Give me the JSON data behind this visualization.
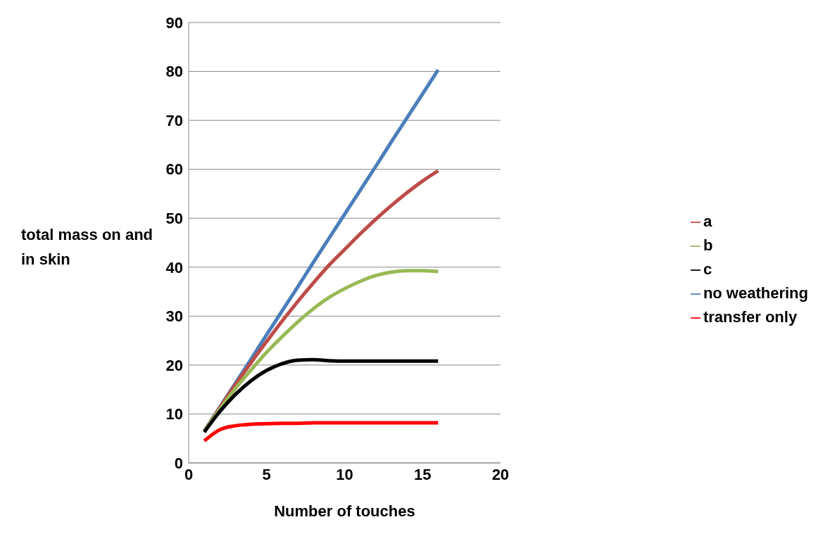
{
  "chart_data": {
    "type": "line",
    "xlabel": "Number of touches",
    "ylabel": "total mass on and in skin",
    "x": [
      1,
      2,
      3,
      4,
      5,
      6,
      7,
      8,
      9,
      10,
      11,
      12,
      13,
      14,
      15,
      16
    ],
    "series": [
      {
        "name": "no weathering",
        "color": "#4a7ebb",
        "values": [
          6.5,
          11.4,
          16.3,
          21.2,
          26.2,
          31.1,
          36.0,
          41.0,
          45.9,
          50.8,
          55.7,
          60.6,
          65.6,
          70.5,
          75.4,
          80.3
        ]
      },
      {
        "name": "a",
        "color": "#be4b48",
        "values": [
          6.5,
          11.3,
          16,
          20.5,
          24.8,
          29,
          33,
          36.8,
          40.4,
          43.6,
          46.8,
          49.8,
          52.6,
          55.2,
          57.6,
          59.7
        ]
      },
      {
        "name": "b",
        "color": "#98b954",
        "values": [
          6.5,
          11,
          15.2,
          19,
          22.6,
          25.8,
          28.8,
          31.5,
          33.8,
          35.6,
          37.1,
          38.3,
          39.0,
          39.3,
          39.3,
          39.1
        ]
      },
      {
        "name": "c",
        "color": "#000000",
        "values": [
          6.3,
          10.5,
          14,
          16.8,
          18.9,
          20.3,
          21,
          21.1,
          20.9,
          20.8,
          20.8,
          20.8,
          20.8,
          20.8,
          20.8,
          20.8
        ]
      },
      {
        "name": "transfer only",
        "color": "#ff0000",
        "values": [
          4.5,
          6.8,
          7.6,
          7.9,
          8.0,
          8.1,
          8.1,
          8.2,
          8.2,
          8.2,
          8.2,
          8.2,
          8.2,
          8.2,
          8.2,
          8.2
        ]
      }
    ],
    "xlim": [
      0,
      20
    ],
    "xticks": [
      0,
      5,
      10,
      15,
      20
    ],
    "ylim": [
      0,
      90
    ],
    "yticks": [
      0,
      10,
      20,
      30,
      40,
      50,
      60,
      70,
      80,
      90
    ],
    "grid": "y",
    "legend": "right",
    "marker": "none",
    "line_style": "solid"
  }
}
